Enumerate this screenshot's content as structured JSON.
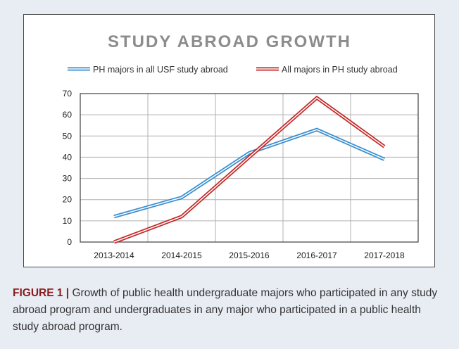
{
  "caption": {
    "label": "FIGURE 1 |",
    "text": " Growth of public health undergraduate majors who participated in any study abroad program and undergraduates in any major who participated in a public health study abroad program."
  },
  "chart_data": {
    "type": "line",
    "title": "STUDY ABROAD GROWTH",
    "xlabel": "",
    "ylabel": "",
    "categories": [
      "2013-2014",
      "2014-2015",
      "2015-2016",
      "2016-2017",
      "2017-2018"
    ],
    "ylim": [
      0,
      70
    ],
    "yticks": [
      0,
      10,
      20,
      30,
      40,
      50,
      60,
      70
    ],
    "grid": true,
    "legend": "top",
    "series": [
      {
        "name": "PH majors in all USF study abroad",
        "color": "#3b8fd0",
        "values": [
          12,
          21,
          42,
          53,
          39
        ]
      },
      {
        "name": "All majors in PH study abroad",
        "color": "#c42a2a",
        "values": [
          0,
          12,
          40,
          68,
          45
        ]
      }
    ],
    "colors": {
      "title": "#8c8c8c",
      "grid": "#b0b0b0",
      "axis": "#404040"
    }
  }
}
